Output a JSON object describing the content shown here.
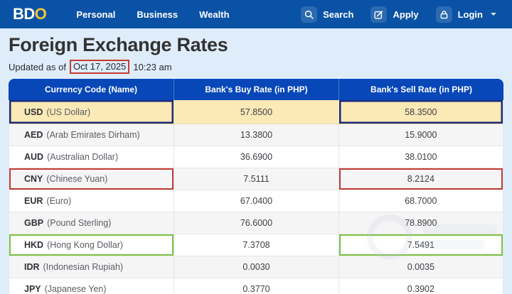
{
  "navbar": {
    "logo": {
      "part1": "BD",
      "part2": "O"
    },
    "links": [
      {
        "label": "Personal"
      },
      {
        "label": "Business"
      },
      {
        "label": "Wealth"
      }
    ],
    "actions": [
      {
        "label": "Search",
        "icon": "search-icon"
      },
      {
        "label": "Apply",
        "icon": "edit-icon"
      },
      {
        "label": "Login",
        "icon": "lock-icon",
        "has_caret": true
      }
    ]
  },
  "page": {
    "title": "Foreign Exchange Rates",
    "updated_prefix": "Updated as of",
    "updated_date": "Oct 17, 2025",
    "updated_time": "10:23 am"
  },
  "table": {
    "headers": [
      "Currency Code (Name)",
      "Bank's Buy Rate (in PHP)",
      "Bank's Sell Rate (in PHP)"
    ],
    "rows": [
      {
        "code": "USD",
        "name": "(US Dollar)",
        "buy": "57.8500",
        "sell": "58.3500",
        "highlight": "usd"
      },
      {
        "code": "AED",
        "name": "(Arab Emirates Dirham)",
        "buy": "13.3800",
        "sell": "15.9000"
      },
      {
        "code": "AUD",
        "name": "(Australian Dollar)",
        "buy": "36.6900",
        "sell": "38.0100"
      },
      {
        "code": "CNY",
        "name": "(Chinese Yuan)",
        "buy": "7.5111",
        "sell": "8.2124",
        "box": "red"
      },
      {
        "code": "EUR",
        "name": "(Euro)",
        "buy": "67.0400",
        "sell": "68.7000"
      },
      {
        "code": "GBP",
        "name": "(Pound Sterling)",
        "buy": "76.6000",
        "sell": "78.8900"
      },
      {
        "code": "HKD",
        "name": "(Hong Kong Dollar)",
        "buy": "7.3708",
        "sell": "7.5491",
        "box": "green"
      },
      {
        "code": "IDR",
        "name": "(Indonesian Rupiah)",
        "buy": "0.0030",
        "sell": "0.0035"
      },
      {
        "code": "JPY",
        "name": "(Japanese Yen)",
        "buy": "0.3770",
        "sell": "0.3902"
      }
    ]
  },
  "colors": {
    "navbar_bg": "#0A52A5",
    "header_bg": "#0747B8",
    "page_bg": "#DFEDFA",
    "logo_gold": "#F5C431",
    "usd_row_bg": "#FBE9B6",
    "usd_border": "#1A2B7D",
    "red_box": "#C43B33",
    "green_box": "#7CC143",
    "alt_row": "#F5F5F6"
  }
}
